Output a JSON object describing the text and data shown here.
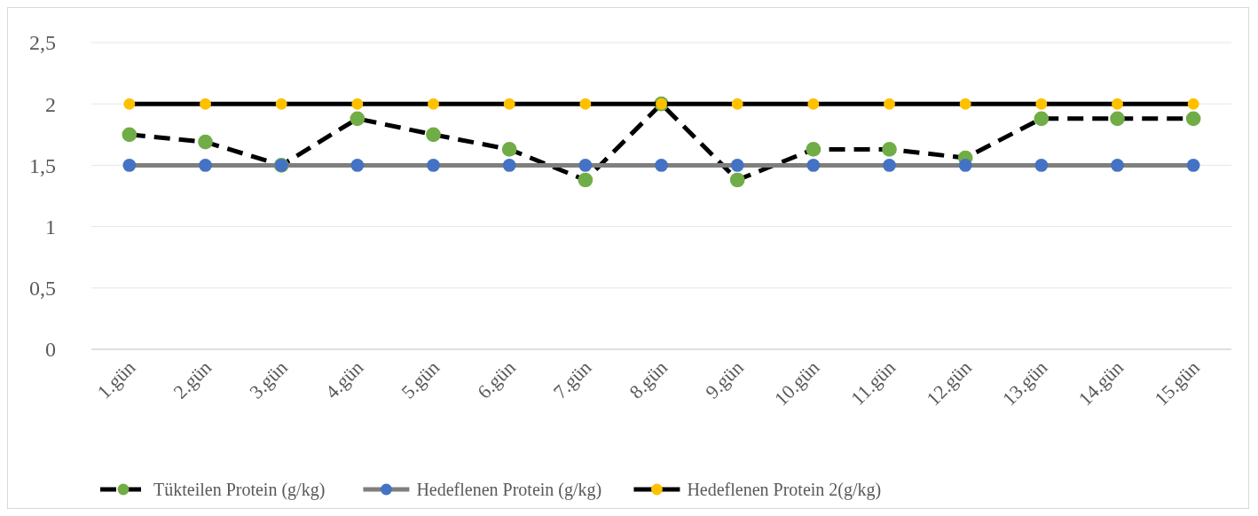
{
  "chart_data": {
    "type": "line",
    "categories": [
      "1.gün",
      "2.gün",
      "3.gün",
      "4.gün",
      "5.gün",
      "6.gün",
      "7.gün",
      "8.gün",
      "9.gün",
      "10.gün",
      "11.gün",
      "12.gün",
      "13.gün",
      "14.gün",
      "15.gün"
    ],
    "series": [
      {
        "name": "Tükteilen Protein (g/kg)",
        "color": "#000000",
        "line_style": "dashed",
        "colors": [
          "#70ad47",
          "#70ad47",
          "#70ad47",
          "#70ad47",
          "#70ad47",
          "#70ad47",
          "#70ad47",
          "#70ad47",
          "#70ad47",
          "#70ad47",
          "#70ad47",
          "#70ad47",
          "#70ad47",
          "#70ad47",
          "#70ad47"
        ],
        "values": [
          1.75,
          1.69,
          1.5,
          1.88,
          1.75,
          1.63,
          1.38,
          2,
          1.38,
          1.63,
          1.63,
          1.56,
          1.88,
          1.88,
          1.88
        ]
      },
      {
        "name": "Hedeflenen Protein (g/kg)",
        "color": "#7f7f7f",
        "line_style": "solid",
        "colors": [
          "#4472c4",
          "#4472c4",
          "#4472c4",
          "#4472c4",
          "#4472c4",
          "#4472c4",
          "#4472c4",
          "#4472c4",
          "#4472c4",
          "#4472c4",
          "#4472c4",
          "#4472c4",
          "#4472c4",
          "#4472c4",
          "#4472c4"
        ],
        "values": [
          1.5,
          1.5,
          1.5,
          1.5,
          1.5,
          1.5,
          1.5,
          1.5,
          1.5,
          1.5,
          1.5,
          1.5,
          1.5,
          1.5,
          1.5
        ]
      },
      {
        "name": "Hedeflenen Protein 2(g/kg)",
        "color": "#000000",
        "line_style": "solid",
        "colors": [
          "#ffc000",
          "#ffc000",
          "#ffc000",
          "#ffc000",
          "#ffc000",
          "#ffc000",
          "#ffc000",
          "#ffc000",
          "#ffc000",
          "#ffc000",
          "#ffc000",
          "#ffc000",
          "#ffc000",
          "#ffc000",
          "#ffc000"
        ],
        "values": [
          2,
          2,
          2,
          2,
          2,
          2,
          2,
          2,
          2,
          2,
          2,
          2,
          2,
          2,
          2
        ]
      }
    ],
    "ylim": [
      0,
      2.5
    ],
    "yticks": [
      {
        "value": 0,
        "label": "0"
      },
      {
        "value": 0.5,
        "label": "0,5"
      },
      {
        "value": 1,
        "label": "1"
      },
      {
        "value": 1.5,
        "label": "1,5"
      },
      {
        "value": 2,
        "label": "2"
      },
      {
        "value": 2.5,
        "label": "2,5"
      }
    ],
    "grid": "y",
    "legend": "bottom",
    "marker": "circle"
  }
}
